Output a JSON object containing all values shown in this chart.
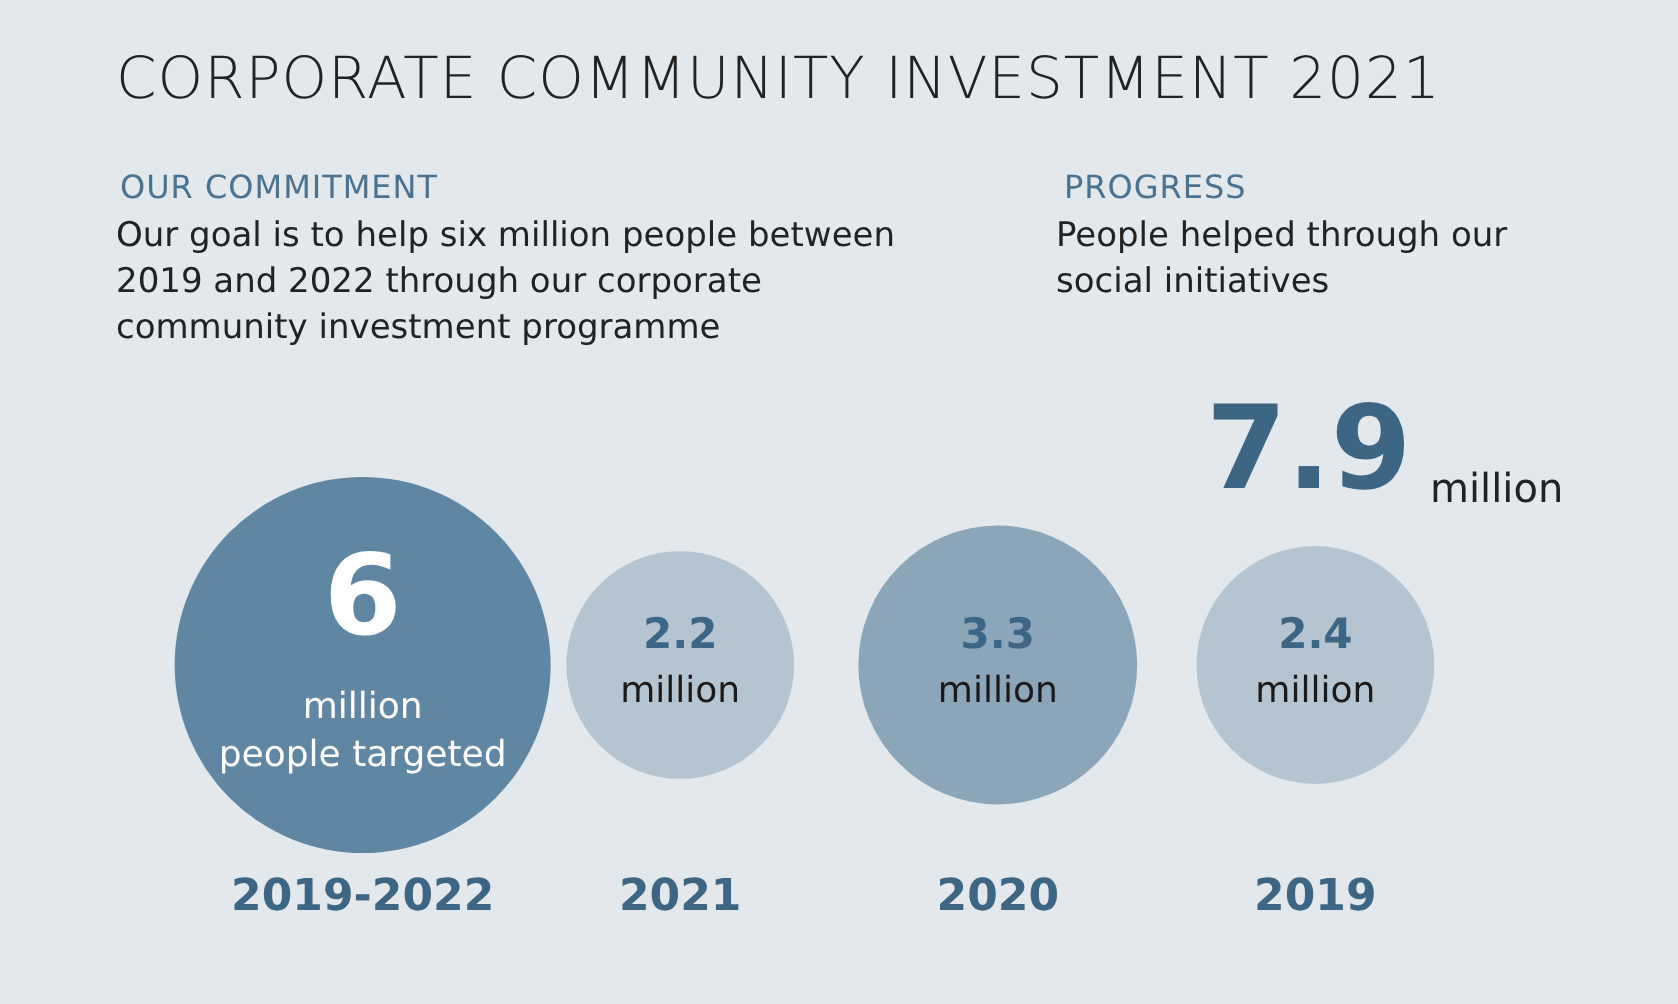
{
  "chart_data": {
    "type": "other",
    "title": "CORPORATE COMMUNITY INVESTMENT 2021",
    "categories": [
      "2019-2022",
      "2021",
      "2020",
      "2019"
    ],
    "values": [
      6,
      2.2,
      3.3,
      2.4
    ],
    "colors": [
      "#5f86a3",
      "#b4c4d0",
      "#8ba6b9",
      "#b4c4d0"
    ],
    "data_labels": true,
    "annotations": [
      "OUR COMMITMENT",
      "Our goal is to help six million people between 2019 and 2022 through our corporate community investment programme",
      "PROGRESS",
      "People helped through our social initiatives",
      "7.9",
      "million",
      "million people targeted",
      "million",
      "million",
      "million"
    ]
  }
}
